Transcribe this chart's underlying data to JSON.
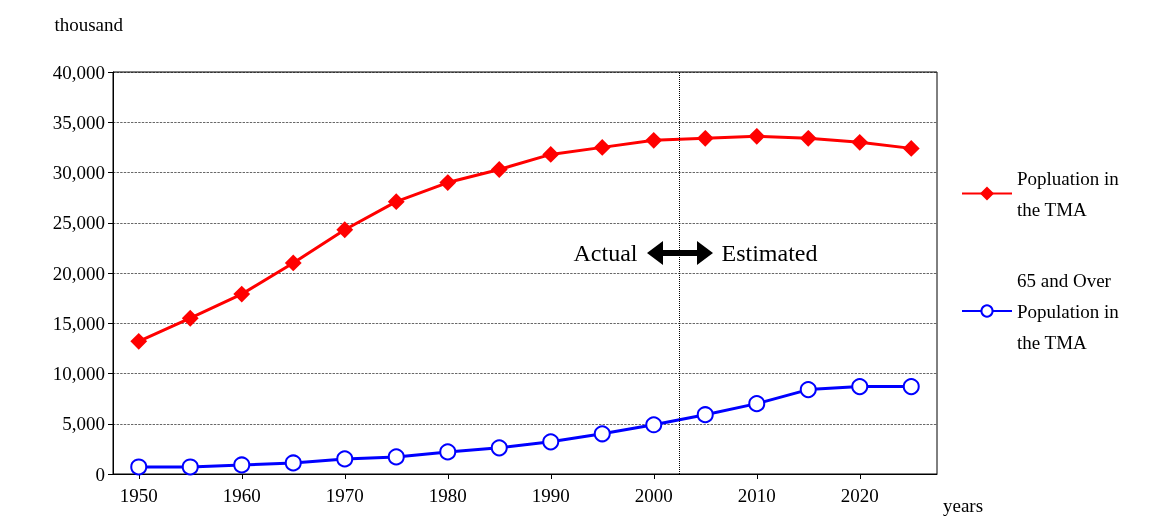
{
  "chart_data": {
    "type": "line",
    "xlabel": "years",
    "ylabel": "thousand",
    "xlim": [
      1947.5,
      2027.5
    ],
    "xticks": [
      1950,
      1960,
      1970,
      1980,
      1990,
      2000,
      2010,
      2020
    ],
    "ylim": [
      0,
      40000
    ],
    "yticks": [
      0,
      {
        "value": 5000,
        "label": "5,000"
      },
      {
        "value": 10000,
        "label": "10,000"
      },
      {
        "value": 15000,
        "label": "15,000"
      },
      {
        "value": 20000,
        "label": "20,000"
      },
      {
        "value": 25000,
        "label": "25,000"
      },
      {
        "value": 30000,
        "label": "30,000"
      },
      {
        "value": 35000,
        "label": "35,000"
      },
      {
        "value": 40000,
        "label": "40,000"
      }
    ],
    "grid": "y",
    "legend": "right",
    "x": [
      1950,
      1955,
      1960,
      1965,
      1970,
      1975,
      1980,
      1985,
      1990,
      1995,
      2000,
      2005,
      2010,
      2015,
      2020,
      2025
    ],
    "series": [
      {
        "name": "Popluation in the TMA",
        "color": "#ff0000",
        "marker": "diamond",
        "values": [
          13200,
          15500,
          17900,
          21000,
          24300,
          27100,
          29000,
          30300,
          31800,
          32500,
          33200,
          33400,
          33600,
          33400,
          33000,
          32400
        ]
      },
      {
        "name": "65 and Over Population in the TMA",
        "color": "#0000ff",
        "marker": "circle",
        "values": [
          700,
          700,
          900,
          1100,
          1500,
          1700,
          2200,
          2600,
          3200,
          4000,
          4900,
          5900,
          7000,
          8400,
          8700,
          8700
        ]
      }
    ],
    "ref_lines": [
      {
        "axis": "x",
        "value": 2002.5,
        "color": "#000000",
        "line_style": "dotted"
      }
    ],
    "annotations": [
      "Actual",
      "Estimated"
    ]
  }
}
